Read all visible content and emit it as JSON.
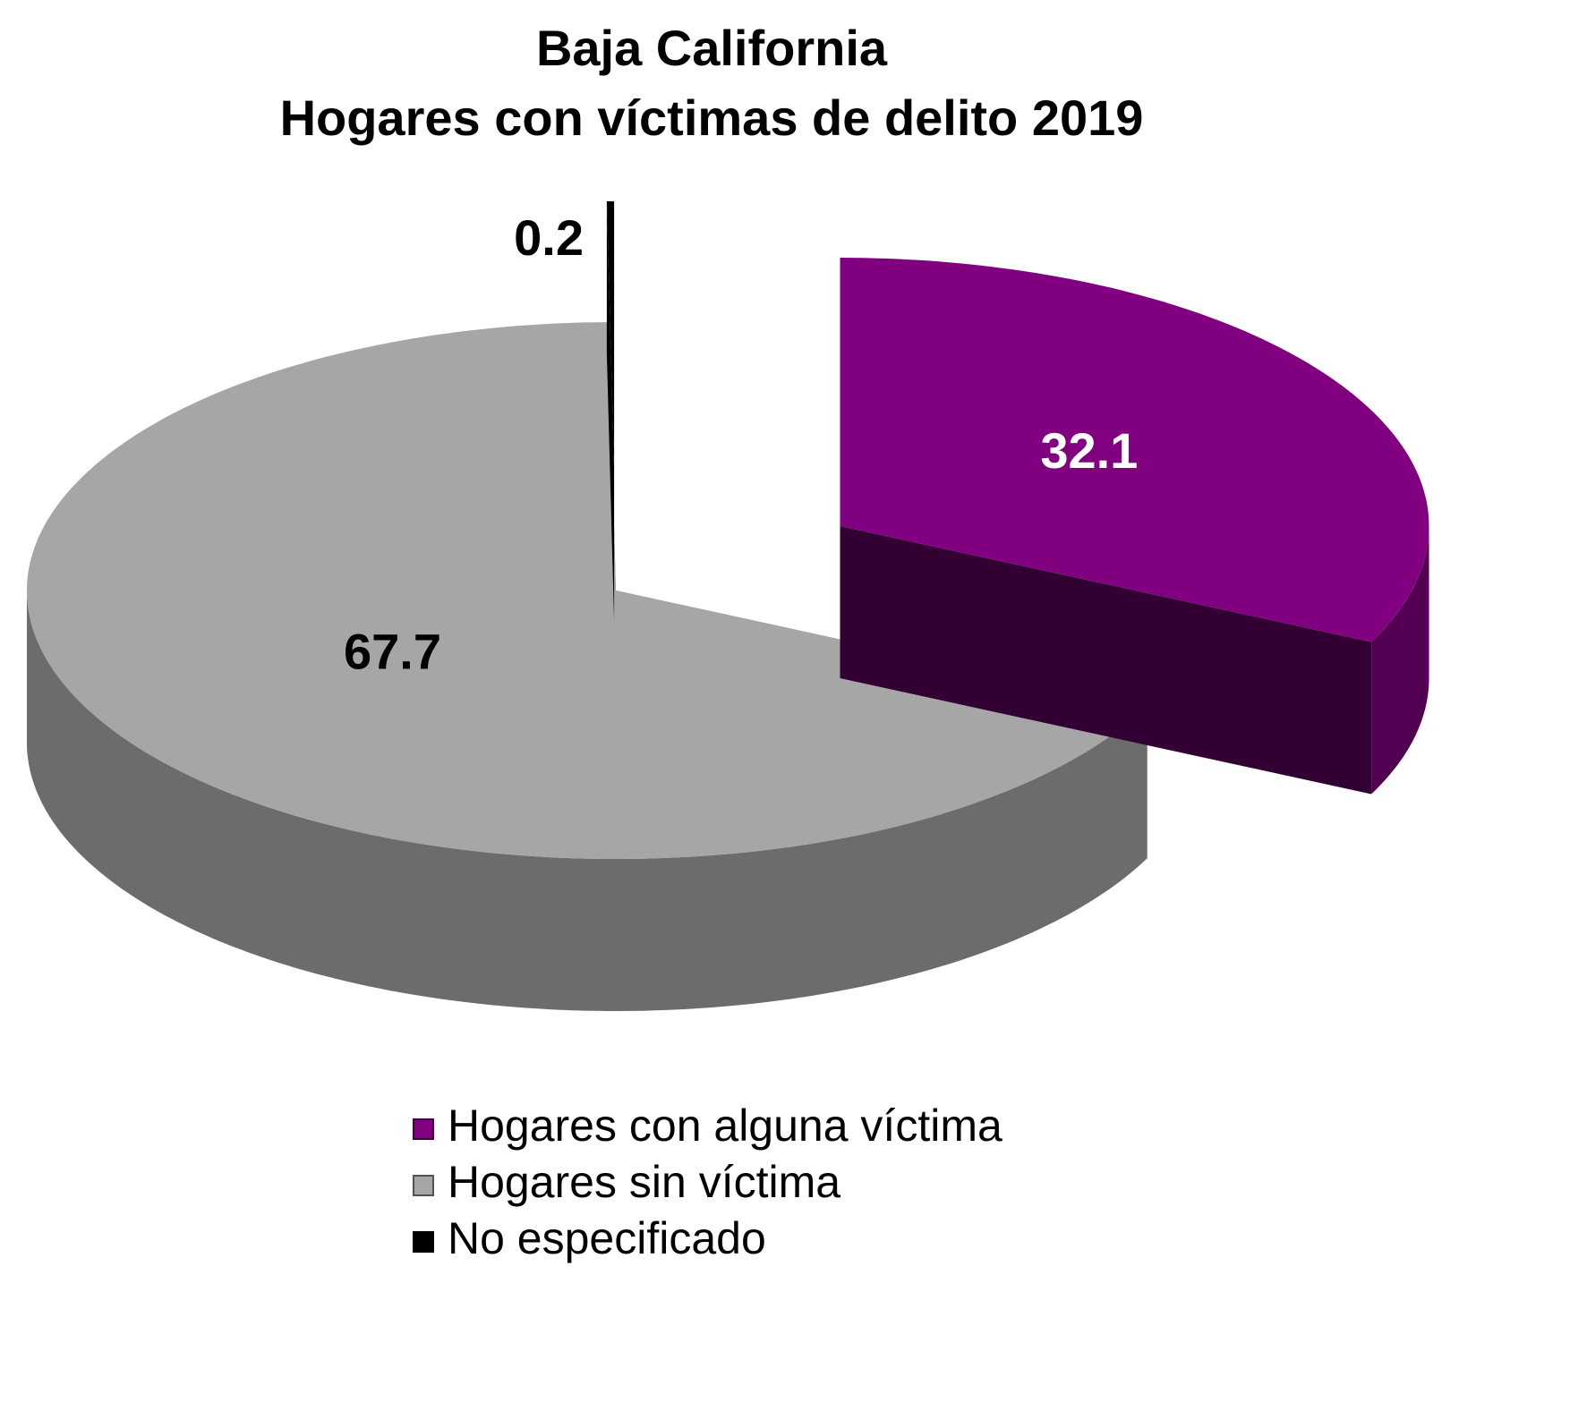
{
  "chart_data": {
    "type": "pie",
    "title": "Baja California",
    "subtitle": "Hogares con víctimas de delito 2019",
    "categories": [
      "Hogares con alguna víctima",
      "Hogares sin víctima",
      "No especificado"
    ],
    "values": [
      32.1,
      67.7,
      0.2
    ],
    "colors": [
      "#800080",
      "#a6a6a6",
      "#000000"
    ],
    "legend": "bottom"
  }
}
